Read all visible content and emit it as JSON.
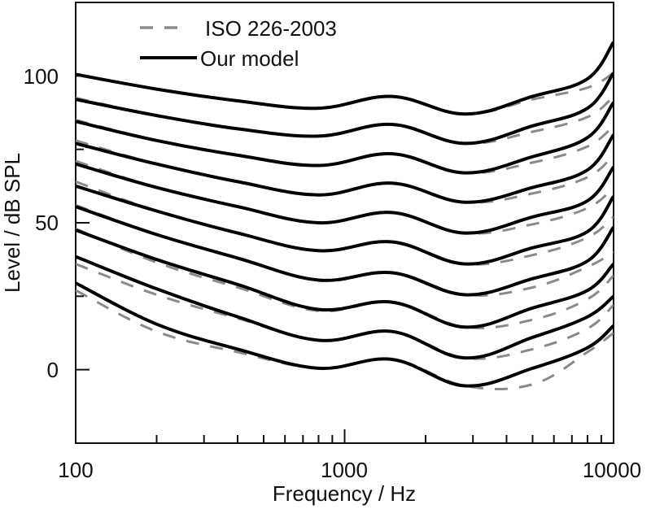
{
  "chart_data": {
    "type": "line",
    "title": "",
    "xlabel": "Frequency / Hz",
    "ylabel": "Level / dB SPL",
    "xscale": "log",
    "xlim": [
      100,
      10000
    ],
    "ylim": [
      -25,
      125
    ],
    "grid": false,
    "legend_position": "upper-left (inside)",
    "x_ticks": [
      {
        "value": 100,
        "label": "100"
      },
      {
        "value": 1000,
        "label": "1000"
      },
      {
        "value": 10000,
        "label": "10000"
      }
    ],
    "x_minor_ticks": [
      200,
      300,
      400,
      500,
      600,
      700,
      800,
      900,
      2000,
      3000,
      4000,
      5000,
      6000,
      7000,
      8000,
      9000
    ],
    "y_ticks": [
      {
        "value": 0,
        "label": "0"
      },
      {
        "value": 50,
        "label": "50"
      },
      {
        "value": 100,
        "label": "100"
      }
    ],
    "y_minor_ticks": [
      -25,
      25,
      75
    ],
    "legend": [
      {
        "name": "ISO 226-2003",
        "style": "dashed",
        "color": "#8a8a8a"
      },
      {
        "name": "Our model",
        "style": "solid",
        "color": "#000000"
      }
    ],
    "x": [
      100,
      200,
      400,
      800,
      1500,
      2800,
      5000,
      8000,
      10000
    ],
    "series": [
      {
        "name": "Our model",
        "phon": 90,
        "values": [
          100.5,
          95.5,
          91.5,
          89,
          93,
          87,
          93,
          99,
          111.5
        ]
      },
      {
        "name": "Our model",
        "phon": 80,
        "values": [
          92,
          86.5,
          82,
          79.5,
          83.5,
          77,
          83,
          89,
          101
        ]
      },
      {
        "name": "Our model",
        "phon": 70,
        "values": [
          84.5,
          78,
          73,
          69.5,
          73.5,
          67,
          72.5,
          79,
          91
        ]
      },
      {
        "name": "Our model",
        "phon": 60,
        "values": [
          77,
          70,
          64,
          59.5,
          63.5,
          57,
          62,
          68,
          80
        ]
      },
      {
        "name": "Our model",
        "phon": 50,
        "values": [
          70,
          62,
          55.5,
          50,
          53.5,
          46.5,
          52,
          57.5,
          69
        ]
      },
      {
        "name": "Our model",
        "phon": 40,
        "values": [
          62.5,
          54,
          46.5,
          40.5,
          43.5,
          36,
          41.5,
          47,
          59
        ]
      },
      {
        "name": "Our model",
        "phon": 30,
        "values": [
          55.5,
          46,
          38,
          30.5,
          33,
          25.5,
          31,
          37,
          48.5
        ]
      },
      {
        "name": "Our model",
        "phon": 20,
        "values": [
          47.5,
          37.5,
          29,
          20.5,
          23,
          14.5,
          21,
          27,
          36
        ]
      },
      {
        "name": "Our model",
        "phon": 10,
        "values": [
          38.5,
          27.5,
          18,
          10,
          13,
          4,
          11,
          18,
          25
        ]
      },
      {
        "name": "Our model",
        "phon": 0,
        "values": [
          29.5,
          15.5,
          7,
          0.5,
          3.5,
          -5.5,
          0.5,
          7.5,
          15
        ]
      },
      {
        "name": "ISO 226-2003",
        "phon": 90,
        "values": [
          100.5,
          95.5,
          91.5,
          89,
          93,
          87,
          92,
          96,
          101
        ]
      },
      {
        "name": "ISO 226-2003",
        "phon": 80,
        "values": [
          92.5,
          86.5,
          82,
          79.5,
          83.5,
          77,
          81,
          86,
          93
        ]
      },
      {
        "name": "ISO 226-2003",
        "phon": 70,
        "values": [
          85,
          78,
          73,
          69.5,
          73.5,
          67,
          70.5,
          76,
          83
        ]
      },
      {
        "name": "ISO 226-2003",
        "phon": 60,
        "values": [
          78,
          70,
          64,
          59.5,
          63.5,
          57,
          60,
          65.5,
          73
        ]
      },
      {
        "name": "ISO 226-2003",
        "phon": 50,
        "values": [
          71,
          62,
          55.5,
          50,
          53.5,
          46.5,
          49.5,
          55,
          62
        ]
      },
      {
        "name": "ISO 226-2003",
        "phon": 40,
        "values": [
          64,
          54,
          46.5,
          40.5,
          43.5,
          36,
          39,
          45,
          52
        ]
      },
      {
        "name": "ISO 226-2003",
        "phon": 30,
        "values": [
          56,
          46,
          38,
          30.5,
          33,
          25.5,
          28,
          35,
          40
        ]
      },
      {
        "name": "ISO 226-2003",
        "phon": 20,
        "values": [
          48,
          36.5,
          28,
          20,
          23,
          14.5,
          17,
          24,
          32
        ]
      },
      {
        "name": "ISO 226-2003",
        "phon": 10,
        "values": [
          36,
          25.5,
          17.5,
          10,
          13,
          4,
          7,
          14,
          22
        ]
      },
      {
        "name": "ISO 226-2003",
        "phon": 0,
        "values": [
          27,
          13,
          6,
          0.5,
          3.5,
          -5.5,
          -5,
          6,
          12.5
        ]
      }
    ]
  },
  "labels": {
    "xlabel": "Frequency / Hz",
    "ylabel": "Level / dB SPL",
    "legend_iso": "ISO 226-2003",
    "legend_model": "Our model",
    "x_tick_100": "100",
    "x_tick_1000": "1000",
    "x_tick_10000": "10000",
    "y_tick_0": "0",
    "y_tick_50": "50",
    "y_tick_100": "100"
  }
}
